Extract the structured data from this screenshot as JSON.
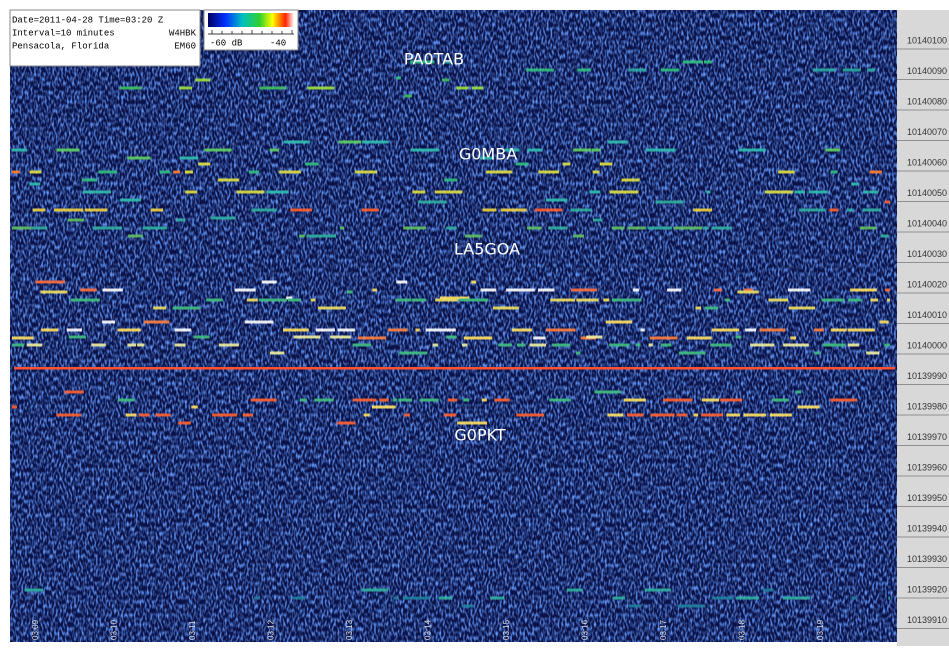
{
  "info": {
    "lines": [
      "Date=2011-04-28 Time=03:20 Z",
      "Interval=10 minutes",
      "W4HBK",
      "Pensacola, Florida",
      "EM60"
    ]
  },
  "colorbar": {
    "min_label": "-60 dB",
    "max_label": "-40"
  },
  "stations": [
    "PA0TAB",
    "G0MBA",
    "LA5GOA",
    "G0PKT"
  ],
  "frequency_axis": {
    "labels": [
      10140100,
      10140090,
      10140080,
      10140070,
      10140060,
      10140050,
      10140040,
      10140030,
      10140020,
      10140010,
      10140000,
      10139990,
      10139980,
      10139970,
      10139960,
      10139950,
      10139940,
      10139930,
      10139920,
      10139910
    ]
  },
  "time_axis": {
    "labels": [
      "03:09",
      "03:10",
      "03:11",
      "03:12",
      "03:13",
      "03:14",
      "03:15",
      "03:16",
      "03:17",
      "03:18",
      "03:19"
    ]
  }
}
